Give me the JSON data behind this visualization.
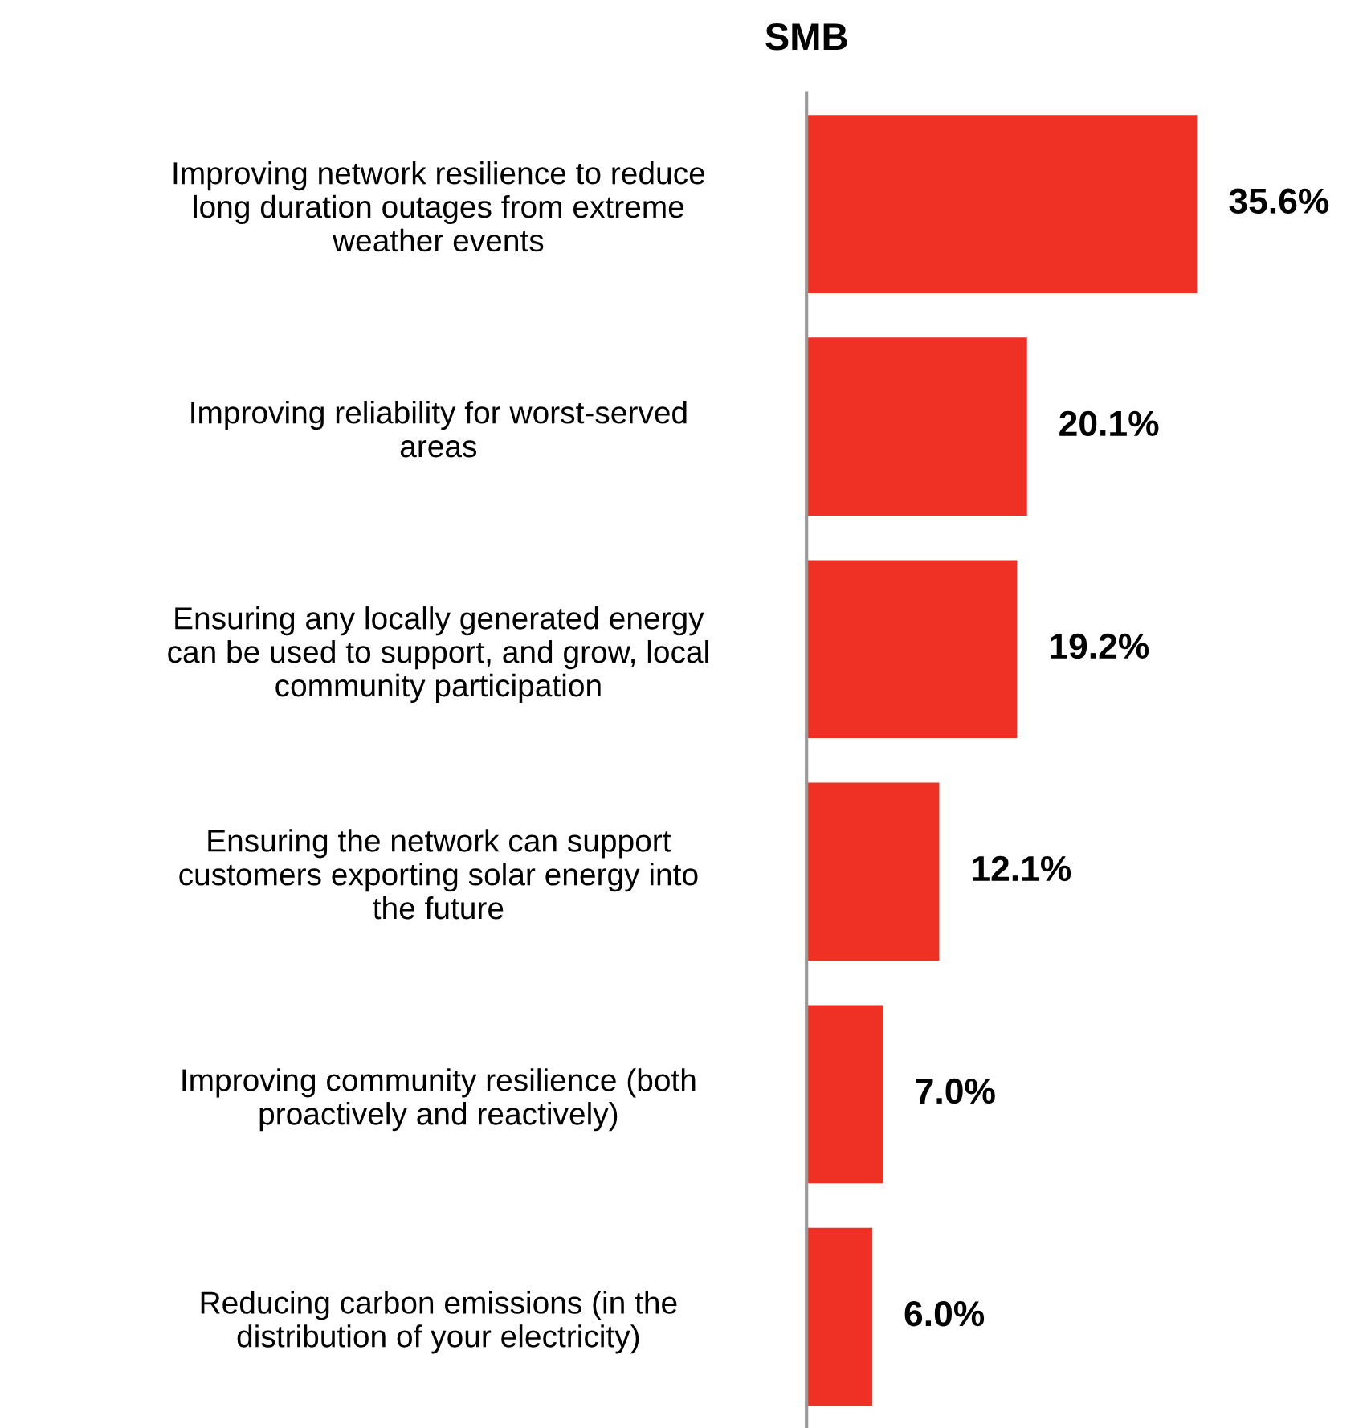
{
  "chart_data": {
    "type": "bar",
    "orientation": "horizontal",
    "title": "SMB",
    "categories": [
      "Improving network resilience to reduce long duration outages from extreme weather events",
      "Improving reliability for worst-served areas",
      "Ensuring any locally generated energy can be used to support, and grow, local community participation",
      "Ensuring the network can support customers exporting solar energy into the future",
      "Improving community resilience (both proactively and reactively)",
      "Reducing carbon emissions (in the distribution of your electricity)"
    ],
    "values": [
      35.6,
      20.1,
      19.2,
      12.1,
      7.0,
      6.0
    ],
    "value_labels": [
      "35.6%",
      "20.1%",
      "19.2%",
      "12.1%",
      "7.0%",
      "6.0%"
    ],
    "color": "#ee3124"
  }
}
